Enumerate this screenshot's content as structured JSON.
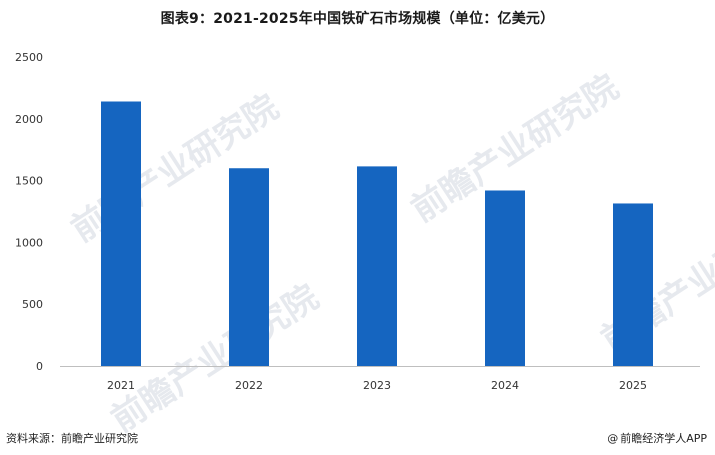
{
  "chart_data": {
    "type": "bar",
    "title": "图表9：2021-2025年中国铁矿石市场规模（单位：亿美元）",
    "categories": [
      "2021",
      "2022",
      "2023",
      "2024",
      "2025"
    ],
    "values": [
      2140,
      1600,
      1615,
      1420,
      1315
    ],
    "ylim": [
      0,
      2500
    ],
    "yticks": [
      0,
      500,
      1000,
      1500,
      2000,
      2500
    ],
    "xlabel": "",
    "ylabel": "",
    "grid": false,
    "bar_color": "#1565c0"
  },
  "footer": {
    "source": "资料来源：前瞻产业研究院",
    "brand_icon": "at-icon",
    "brand": "前瞻经济学人APP"
  },
  "watermark": {
    "text": "前瞻产业研究院"
  }
}
